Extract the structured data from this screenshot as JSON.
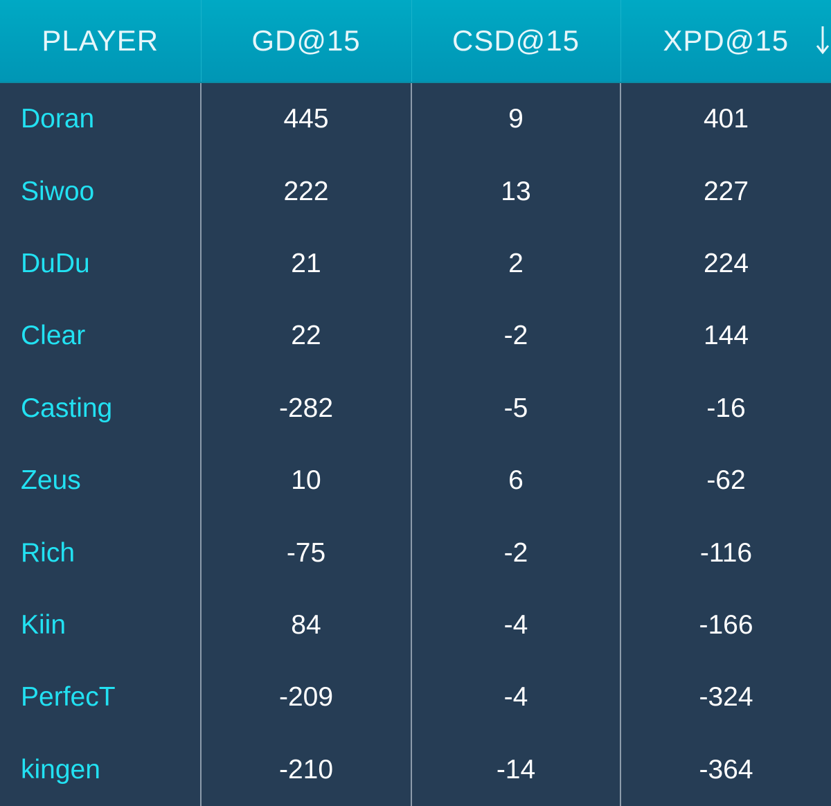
{
  "table": {
    "columns": [
      "PLAYER",
      "GD@15",
      "CSD@15",
      "XPD@15"
    ],
    "rows": [
      [
        "Doran",
        445,
        9,
        401
      ],
      [
        "Siwoo",
        222,
        13,
        227
      ],
      [
        "DuDu",
        21,
        2,
        224
      ],
      [
        "Clear",
        22,
        -2,
        144
      ],
      [
        "Casting",
        -282,
        -5,
        -16
      ],
      [
        "Zeus",
        10,
        6,
        -62
      ],
      [
        "Rich",
        -75,
        -2,
        -116
      ],
      [
        "Kiin",
        84,
        -4,
        -166
      ],
      [
        "PerfecT",
        -209,
        -4,
        -324
      ],
      [
        "kingen",
        -210,
        -14,
        -364
      ]
    ]
  }
}
